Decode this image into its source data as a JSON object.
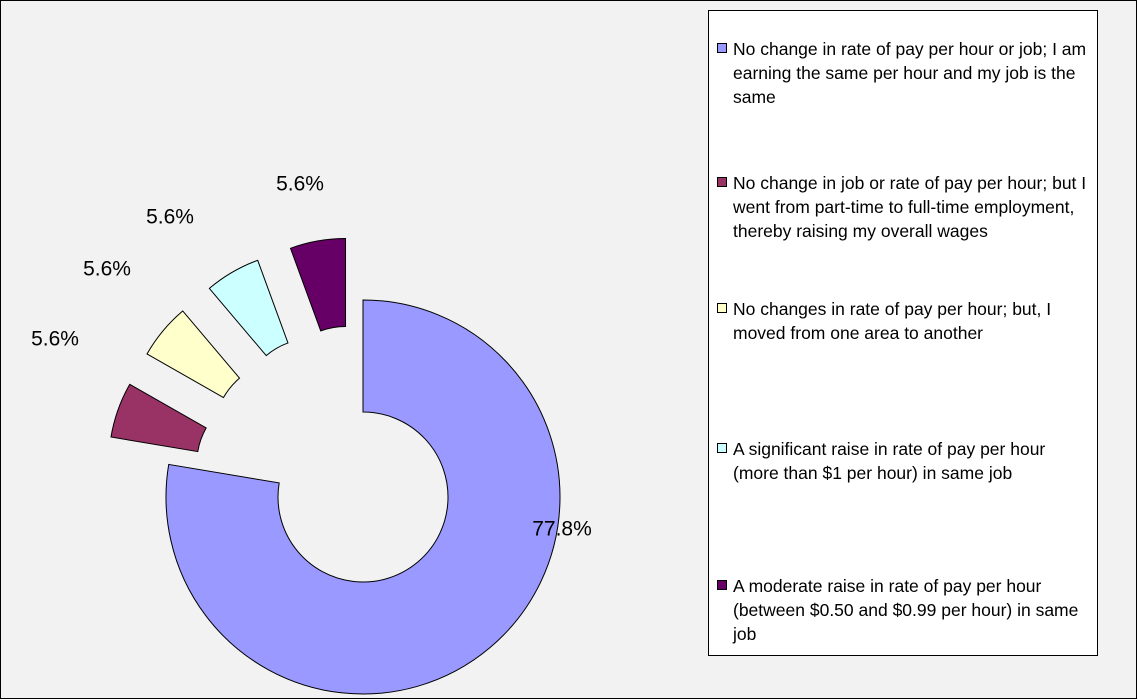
{
  "chart_data": {
    "type": "donut",
    "categories": [
      "No change in rate of pay per hour or job; I am earning the same per hour and my job is the same",
      "No change in job or rate of pay per hour; but I went from part-time to full-time employment, thereby raising my overall wages",
      "No changes in rate of pay per hour; but, I moved from one area to another",
      "A significant raise in rate of pay per hour (more than $1 per hour) in same job",
      "A moderate raise in rate of pay per hour (between $0.50 and $0.99 per hour) in same job"
    ],
    "values": [
      77.8,
      5.6,
      5.6,
      5.6,
      5.6
    ],
    "value_labels": [
      "77.8%",
      "5.6%",
      "5.6%",
      "5.6%",
      "5.6%"
    ],
    "colors": [
      "#9999ff",
      "#993366",
      "#ffffcc",
      "#ccffff",
      "#660066"
    ],
    "legend": "right"
  }
}
